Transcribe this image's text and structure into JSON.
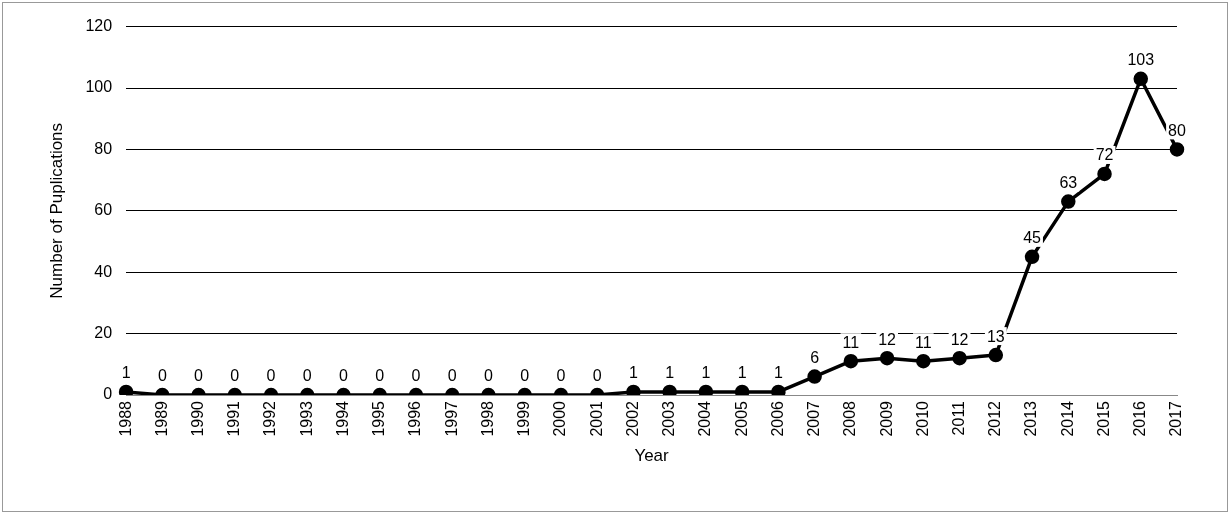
{
  "chart_data": {
    "type": "line",
    "xlabel": "Year",
    "ylabel": "Number of Puplications",
    "categories": [
      "1988",
      "1989",
      "1990",
      "1991",
      "1992",
      "1993",
      "1994",
      "1995",
      "1996",
      "1997",
      "1998",
      "1999",
      "2000",
      "2001",
      "2002",
      "2003",
      "2004",
      "2005",
      "2006",
      "2007",
      "2008",
      "2009",
      "2010",
      "2011",
      "2012",
      "2013",
      "2014",
      "2015",
      "2016",
      "2017"
    ],
    "series": [
      {
        "color": "#000000",
        "values": [
          1,
          0,
          0,
          0,
          0,
          0,
          0,
          0,
          0,
          0,
          0,
          0,
          0,
          0,
          1,
          1,
          1,
          1,
          1,
          6,
          11,
          12,
          11,
          12,
          13,
          45,
          63,
          72,
          103,
          80
        ]
      }
    ],
    "ylim": [
      0,
      120
    ],
    "yticks": [
      0,
      20,
      40,
      60,
      80,
      100,
      120
    ],
    "grid": "y",
    "legend": false,
    "marker": "circle",
    "line_style": "solid",
    "data_labels": true
  }
}
